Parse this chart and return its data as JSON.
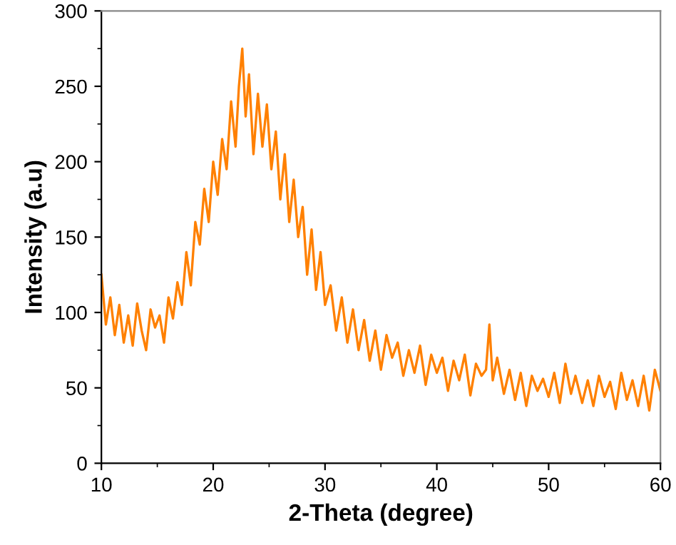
{
  "chart_data": {
    "type": "line",
    "xlabel": "2-Theta (degree)",
    "ylabel": "Intensity (a.u)",
    "x": [
      10,
      10.4,
      10.8,
      11.2,
      11.6,
      12,
      12.4,
      12.8,
      13.2,
      13.6,
      14,
      14.4,
      14.8,
      15.2,
      15.6,
      16,
      16.4,
      16.8,
      17.2,
      17.6,
      18,
      18.4,
      18.8,
      19.2,
      19.6,
      20,
      20.4,
      20.8,
      21.2,
      21.6,
      22,
      22.3,
      22.6,
      22.9,
      23.2,
      23.6,
      24,
      24.4,
      24.8,
      25.2,
      25.6,
      26,
      26.4,
      26.8,
      27.2,
      27.6,
      28,
      28.4,
      28.8,
      29.2,
      29.6,
      30,
      30.5,
      31,
      31.5,
      32,
      32.5,
      33,
      33.5,
      34,
      34.5,
      35,
      35.5,
      36,
      36.5,
      37,
      37.5,
      38,
      38.5,
      39,
      39.5,
      40,
      40.5,
      41,
      41.5,
      42,
      42.5,
      43,
      43.5,
      44,
      44.4,
      44.7,
      45,
      45.4,
      46,
      46.5,
      47,
      47.5,
      48,
      48.5,
      49,
      49.5,
      50,
      50.5,
      51,
      51.5,
      52,
      52.4,
      53,
      53.5,
      54,
      54.5,
      55,
      55.5,
      56,
      56.5,
      57,
      57.5,
      58,
      58.5,
      59,
      59.5,
      60
    ],
    "series": [
      {
        "color": "#ff8000",
        "values": [
          125,
          92,
          110,
          85,
          105,
          80,
          98,
          78,
          106,
          88,
          75,
          102,
          90,
          98,
          80,
          110,
          96,
          120,
          105,
          140,
          118,
          160,
          145,
          182,
          160,
          200,
          178,
          215,
          195,
          240,
          210,
          250,
          275,
          230,
          258,
          205,
          245,
          210,
          238,
          195,
          220,
          175,
          205,
          160,
          188,
          150,
          170,
          125,
          155,
          115,
          140,
          105,
          118,
          88,
          110,
          80,
          102,
          75,
          95,
          68,
          88,
          62,
          85,
          70,
          80,
          58,
          75,
          60,
          78,
          52,
          72,
          60,
          70,
          48,
          68,
          55,
          72,
          45,
          66,
          58,
          62,
          92,
          55,
          70,
          46,
          62,
          42,
          60,
          38,
          58,
          48,
          56,
          44,
          60,
          40,
          66,
          46,
          58,
          40,
          55,
          38,
          58,
          44,
          54,
          36,
          60,
          42,
          55,
          38,
          58,
          35,
          62,
          48
        ]
      }
    ],
    "xlim": [
      10,
      60
    ],
    "ylim": [
      0,
      300
    ],
    "xticks": [
      10,
      20,
      30,
      40,
      50,
      60
    ],
    "yticks": [
      0,
      50,
      100,
      150,
      200,
      250,
      300
    ],
    "grid": false,
    "legend": false,
    "marker": "none",
    "line_style": "solid"
  }
}
